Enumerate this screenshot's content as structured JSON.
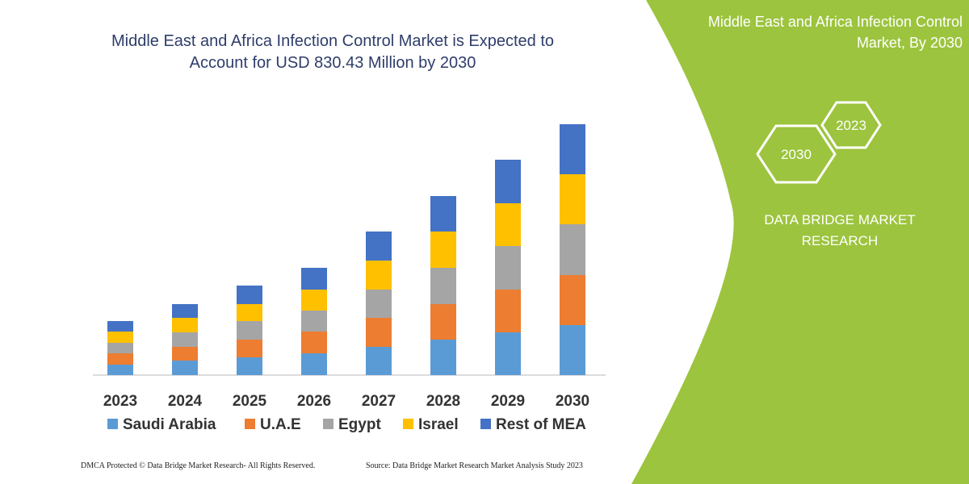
{
  "chart_data": {
    "type": "stacked_bar",
    "title": "Middle East and Africa Infection Control Market is Expected to Account for USD 830.43 Million by 2030",
    "categories": [
      "2023",
      "2024",
      "2025",
      "2026",
      "2027",
      "2028",
      "2029",
      "2030"
    ],
    "series": [
      {
        "name": "Saudi Arabia",
        "color": "#5b9bd5",
        "values": [
          13,
          18,
          22,
          27,
          35,
          44,
          53,
          62
        ]
      },
      {
        "name": "U.A.E",
        "color": "#ed7d31",
        "values": [
          14,
          17,
          22,
          27,
          36,
          44,
          53,
          62
        ]
      },
      {
        "name": "Egypt",
        "color": "#a5a5a5",
        "values": [
          13,
          18,
          23,
          26,
          35,
          45,
          54,
          63
        ]
      },
      {
        "name": "Israel",
        "color": "#ffc000",
        "values": [
          14,
          18,
          21,
          26,
          36,
          45,
          53,
          62
        ]
      },
      {
        "name": "Rest of MEA",
        "color": "#4472c4",
        "values": [
          13,
          17,
          23,
          27,
          36,
          44,
          54,
          62
        ]
      }
    ],
    "ylim": [
      0,
      330
    ]
  },
  "panel": {
    "title": "Middle East and Africa Infection Control Market, By 2030",
    "badges": [
      "2023",
      "2030"
    ],
    "brand": "DATA BRIDGE MARKET RESEARCH"
  },
  "footer": {
    "left": "DMCA Protected © Data Bridge Market Research-  All Rights Reserved.",
    "right": "Source: Data Bridge Market Research  Market Analysis Study 2023"
  }
}
